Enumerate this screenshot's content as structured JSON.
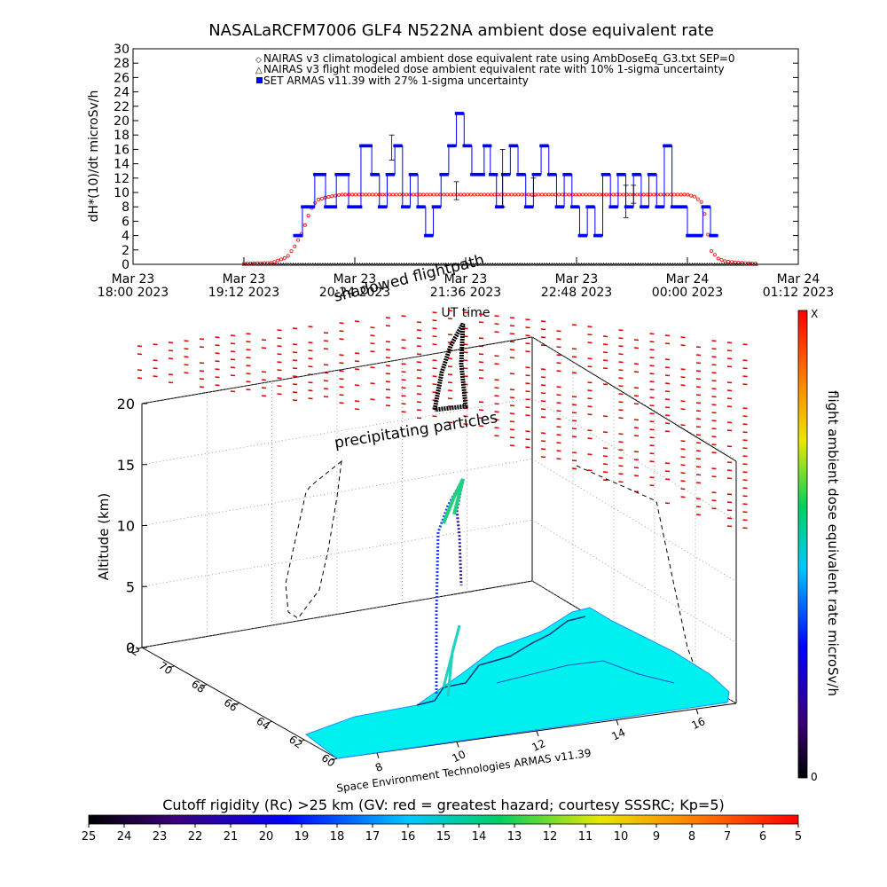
{
  "title": "NASALaRCFM7006  GLF4 N522NA ambient dose equivalent rate",
  "chart_data": [
    {
      "type": "line",
      "ylabel": "dH*(10)/dt microSv/h",
      "xlabel": "UT time",
      "ylim": [
        0,
        30
      ],
      "yticks": [
        "0",
        "2",
        "4",
        "6",
        "8",
        "10",
        "12",
        "14",
        "16",
        "18",
        "20",
        "22",
        "24",
        "26",
        "28",
        "30"
      ],
      "xticks": [
        {
          "day": "Mar 23",
          "time": "18:00 2023"
        },
        {
          "day": "Mar 23",
          "time": "19:12 2023"
        },
        {
          "day": "Mar 23",
          "time": "20:24 2023"
        },
        {
          "day": "Mar 23",
          "time": "21:36 2023"
        },
        {
          "day": "Mar 23",
          "time": "22:48 2023"
        },
        {
          "day": "Mar 24",
          "time": "00:00 2023"
        },
        {
          "day": "Mar 24",
          "time": "01:12 2023"
        }
      ],
      "xlim_minutes": [
        0,
        432
      ],
      "legend_position": "top-right",
      "legend": [
        "NAIRAS v3 climatological ambient dose equivalent rate using AmbDoseEq_G3.txt SEP=0",
        "NAIRAS v3 flight modeled dose ambient equivalent rate with 10% 1-sigma uncertainty",
        "SET ARMAS v11.39 with 27% 1-sigma uncertainty"
      ],
      "series": [
        {
          "name": "NAIRAS v3 climatological ambient dose equivalent rate using AmbDoseEq_G3.txt SEP=0",
          "color": "#ff0000",
          "x_minutes": [
            72,
            90,
            100,
            105,
            110,
            115,
            118,
            120,
            125,
            130,
            135,
            140,
            360,
            365,
            370,
            372,
            375,
            380,
            385,
            395,
            405
          ],
          "y": [
            0.1,
            0.2,
            1.0,
            2.5,
            4.5,
            7.5,
            8.5,
            9.0,
            9.3,
            9.5,
            9.7,
            9.7,
            9.7,
            9.4,
            8.5,
            6.0,
            2.0,
            0.8,
            0.4,
            0.2,
            0.1
          ]
        },
        {
          "name": "NAIRAS v3 flight modeled dose ambient equivalent rate with 10% 1-sigma uncertainty",
          "color": "#000000",
          "x_minutes": [
            72,
            405
          ],
          "y": [
            0,
            0
          ]
        },
        {
          "name": "SET ARMAS v11.39 with 27% 1-sigma uncertainty",
          "color": "#0000ff",
          "x_minutes": [
            105,
            108,
            110,
            113,
            118,
            125,
            132,
            140,
            148,
            155,
            160,
            165,
            170,
            175,
            180,
            185,
            190,
            195,
            200,
            205,
            210,
            215,
            220,
            225,
            228,
            232,
            236,
            240,
            245,
            250,
            255,
            260,
            265,
            270,
            275,
            280,
            285,
            290,
            295,
            300,
            305,
            310,
            315,
            320,
            325,
            330,
            335,
            340,
            345,
            350,
            355,
            360,
            365,
            370,
            375,
            380
          ],
          "y": [
            4,
            4,
            8,
            8,
            12.5,
            8,
            12.5,
            8,
            16.5,
            12.5,
            8,
            12.5,
            16.5,
            8,
            12.5,
            8,
            4,
            8,
            12.5,
            16.5,
            21,
            16.5,
            12.5,
            12.5,
            16.5,
            12.5,
            8,
            12.5,
            16.5,
            12.5,
            8,
            12.5,
            16.5,
            12.5,
            8,
            12.5,
            8,
            4,
            8,
            4,
            12.5,
            8,
            12.5,
            8,
            12.5,
            8,
            12.5,
            8,
            16.5,
            8,
            8,
            4,
            4,
            8,
            4,
            4
          ]
        }
      ]
    },
    {
      "type": "scatter",
      "zlabel": "Altitude (km)",
      "zticks": [
        "0",
        "5",
        "10",
        "15",
        "20"
      ],
      "xticks": [
        "8",
        "10",
        "12",
        "14",
        "16"
      ],
      "yticks": [
        "60",
        "62",
        "64",
        "66",
        "68",
        "70",
        "72"
      ],
      "annotations": [
        "shadowed flightpath",
        "precipitating particles",
        "Space Environment Technologies ARMAS v11.39"
      ],
      "colorbar_right": {
        "label": "flight ambient dose equivalent rate microSv/h",
        "max_label": "X",
        "min_label": "0"
      },
      "colorbar_bottom": {
        "label": "Cutoff rigidity (Rc) >25 km (GV: red = greatest hazard; courtesy SSSRC; Kp=5)",
        "ticks": [
          "25",
          "24",
          "23",
          "22",
          "21",
          "20",
          "19",
          "18",
          "17",
          "16",
          "15",
          "14",
          "13",
          "12",
          "11",
          "10",
          "9",
          "8",
          "7",
          "6",
          "5"
        ]
      }
    }
  ]
}
